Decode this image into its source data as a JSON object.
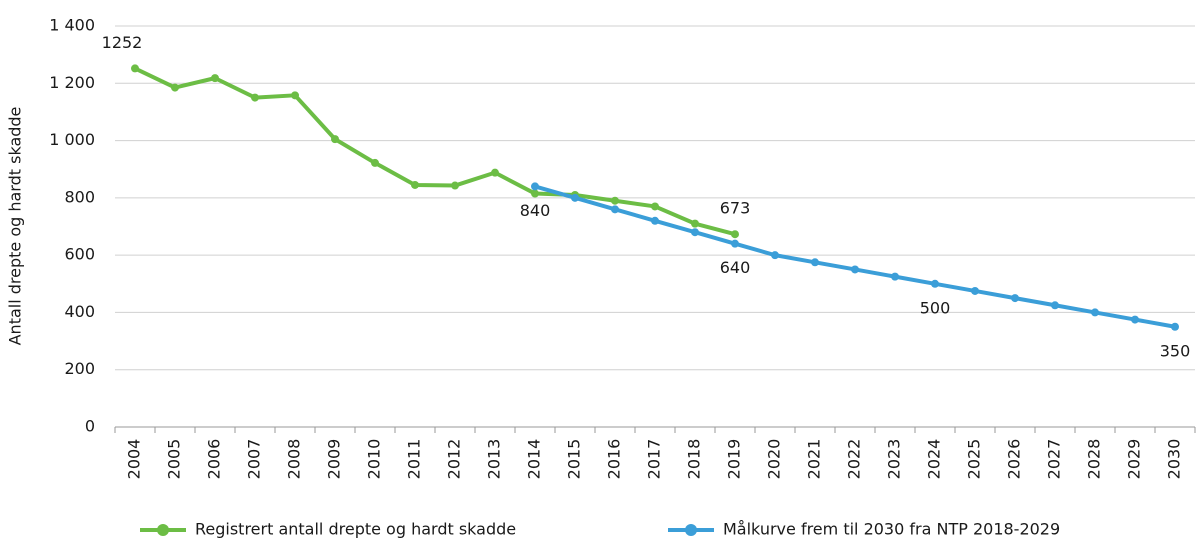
{
  "chart_data": {
    "type": "line",
    "y_label": "Antall drepte og hardt skadde",
    "categories": [
      "2004",
      "2005",
      "2006",
      "2007",
      "2008",
      "2009",
      "2010",
      "2011",
      "2012",
      "2013",
      "2014",
      "2015",
      "2016",
      "2017",
      "2018",
      "2019",
      "2020",
      "2021",
      "2022",
      "2023",
      "2024",
      "2025",
      "2026",
      "2027",
      "2028",
      "2029",
      "2030"
    ],
    "series": [
      {
        "name": "Registrert antall drepte og hardt skadde",
        "color": "#6cbd45",
        "values": [
          1252,
          1185,
          1218,
          1150,
          1158,
          1005,
          922,
          845,
          843,
          888,
          815,
          810,
          790,
          770,
          710,
          673,
          null,
          null,
          null,
          null,
          null,
          null,
          null,
          null,
          null,
          null,
          null
        ],
        "value_labels": [
          "1252",
          null,
          null,
          null,
          null,
          null,
          null,
          null,
          null,
          null,
          null,
          null,
          null,
          null,
          null,
          "673",
          null,
          null,
          null,
          null,
          null,
          null,
          null,
          null,
          null,
          null,
          null
        ]
      },
      {
        "name": "Målkurve frem til 2030 fra NTP 2018-2029",
        "color": "#3b9ed8",
        "values": [
          null,
          null,
          null,
          null,
          null,
          null,
          null,
          null,
          null,
          null,
          840,
          800,
          760,
          720,
          680,
          640,
          600,
          575,
          550,
          525,
          500,
          475,
          450,
          425,
          400,
          375,
          350
        ],
        "value_labels": [
          null,
          null,
          null,
          null,
          null,
          null,
          null,
          null,
          null,
          null,
          "840",
          null,
          null,
          null,
          null,
          "640",
          null,
          null,
          null,
          null,
          "500",
          null,
          null,
          null,
          null,
          null,
          "350"
        ]
      }
    ],
    "ylim": [
      0,
      1400
    ],
    "yticks": [
      0,
      200,
      400,
      600,
      800,
      {
        "value": 1000,
        "label": "1 000"
      },
      {
        "value": 1200,
        "label": "1 200"
      },
      {
        "value": 1400,
        "label": "1 400"
      }
    ],
    "grid": true
  }
}
